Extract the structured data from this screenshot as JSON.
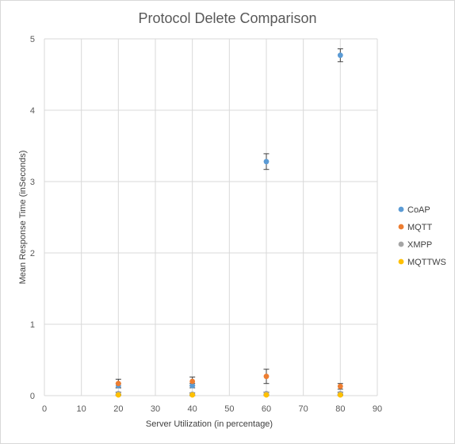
{
  "chart_data": {
    "type": "scatter",
    "title": "Protocol Delete Comparison",
    "xlabel": "Server Utilization (in percentage)",
    "ylabel": "Mean Response Time (inSeconds)",
    "xlim": [
      0,
      90
    ],
    "ylim": [
      0,
      5
    ],
    "xticks": [
      "0",
      "10",
      "20",
      "30",
      "40",
      "50",
      "60",
      "70",
      "80",
      "90"
    ],
    "yticks": [
      "0",
      "1",
      "2",
      "3",
      "4",
      "5"
    ],
    "grid": true,
    "legend_position": "right",
    "error_bars": true,
    "series": [
      {
        "name": "CoAP",
        "color": "#5b9bd5",
        "points": [
          {
            "x": 20,
            "y": 0.14,
            "err": 0.03
          },
          {
            "x": 40,
            "y": 0.14,
            "err": 0.03
          },
          {
            "x": 60,
            "y": 3.28,
            "err": 0.11
          },
          {
            "x": 80,
            "y": 4.77,
            "err": 0.09
          }
        ]
      },
      {
        "name": "MQTT",
        "color": "#ed7d31",
        "points": [
          {
            "x": 20,
            "y": 0.17,
            "err": 0.06
          },
          {
            "x": 40,
            "y": 0.2,
            "err": 0.06
          },
          {
            "x": 60,
            "y": 0.27,
            "err": 0.1
          },
          {
            "x": 80,
            "y": 0.13,
            "err": 0.04
          }
        ]
      },
      {
        "name": "XMPP",
        "color": "#a5a5a5",
        "points": [
          {
            "x": 20,
            "y": 0.03,
            "err": 0.02
          },
          {
            "x": 40,
            "y": 0.02,
            "err": 0.02
          },
          {
            "x": 60,
            "y": 0.03,
            "err": 0.02
          },
          {
            "x": 80,
            "y": 0.03,
            "err": 0.02
          }
        ]
      },
      {
        "name": "MQTTWS",
        "color": "#ffc000",
        "points": [
          {
            "x": 20,
            "y": 0.01,
            "err": 0.01
          },
          {
            "x": 40,
            "y": 0.01,
            "err": 0.01
          },
          {
            "x": 60,
            "y": 0.01,
            "err": 0.01
          },
          {
            "x": 80,
            "y": 0.01,
            "err": 0.01
          }
        ]
      }
    ]
  }
}
